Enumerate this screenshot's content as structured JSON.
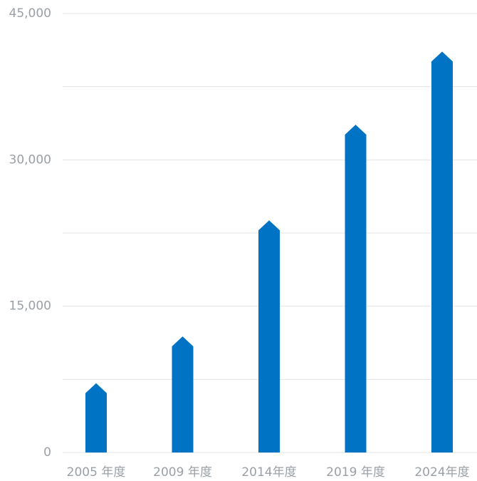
{
  "chart_data": {
    "type": "bar",
    "categories": [
      "2005 年度",
      "2009 年度",
      "2014年度",
      "2019 年度",
      "2024年度"
    ],
    "values": [
      7100,
      11900,
      23800,
      33600,
      41100
    ],
    "color": "#0073c4",
    "ylim": [
      0,
      45000
    ],
    "yticks": [
      0,
      {
        "value": 15000,
        "label": "15,000"
      },
      {
        "value": 30000,
        "label": "30,000"
      },
      {
        "value": 45000,
        "label": "45,000"
      }
    ],
    "minor_yticks": [
      7500,
      22500,
      37500
    ],
    "grid": true
  }
}
